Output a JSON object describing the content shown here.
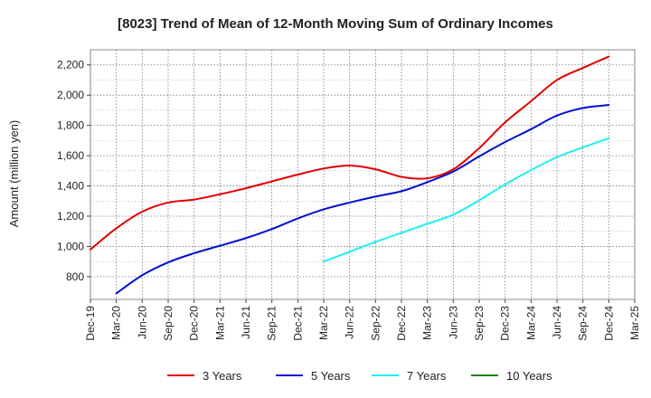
{
  "chart_data": {
    "type": "line",
    "title": "[8023]  Trend of Mean of 12-Month Moving Sum of Ordinary Incomes",
    "xlabel": "",
    "ylabel": "Amount (million yen)",
    "ylim": [
      650,
      2300
    ],
    "yticks": [
      800,
      1000,
      1200,
      1400,
      1600,
      1800,
      2000,
      2200
    ],
    "ytick_labels": [
      "800",
      "1,000",
      "1,200",
      "1,400",
      "1,600",
      "1,800",
      "2,000",
      "2,200"
    ],
    "categories": [
      "Dec-19",
      "Mar-20",
      "Jun-20",
      "Sep-20",
      "Dec-20",
      "Mar-21",
      "Jun-21",
      "Sep-21",
      "Dec-21",
      "Mar-22",
      "Jun-22",
      "Sep-22",
      "Dec-22",
      "Mar-23",
      "Jun-23",
      "Sep-23",
      "Dec-23",
      "Mar-24",
      "Jun-24",
      "Sep-24",
      "Dec-24",
      "Mar-25"
    ],
    "grid": true,
    "legend_position": "bottom",
    "series": [
      {
        "name": "3 Years",
        "color": "#e00000",
        "values": [
          980,
          1120,
          1230,
          1290,
          1310,
          1345,
          1385,
          1430,
          1475,
          1515,
          1535,
          1510,
          1460,
          1450,
          1510,
          1650,
          1820,
          1960,
          2100,
          2180,
          2255,
          null
        ]
      },
      {
        "name": "5 Years",
        "color": "#0010d0",
        "values": [
          null,
          690,
          810,
          895,
          955,
          1005,
          1055,
          1115,
          1185,
          1245,
          1290,
          1330,
          1365,
          1425,
          1495,
          1595,
          1690,
          1775,
          1865,
          1915,
          1935,
          null
        ]
      },
      {
        "name": "7 Years",
        "color": "#22eef0",
        "values": [
          null,
          null,
          null,
          null,
          null,
          null,
          null,
          null,
          null,
          900,
          965,
          1030,
          1090,
          1150,
          1210,
          1305,
          1410,
          1505,
          1590,
          1655,
          1715,
          null
        ]
      },
      {
        "name": "10 Years",
        "color": "#10800a",
        "values": [
          null,
          null,
          null,
          null,
          null,
          null,
          null,
          null,
          null,
          null,
          null,
          null,
          null,
          null,
          null,
          null,
          null,
          null,
          null,
          null,
          null,
          null
        ]
      }
    ]
  }
}
